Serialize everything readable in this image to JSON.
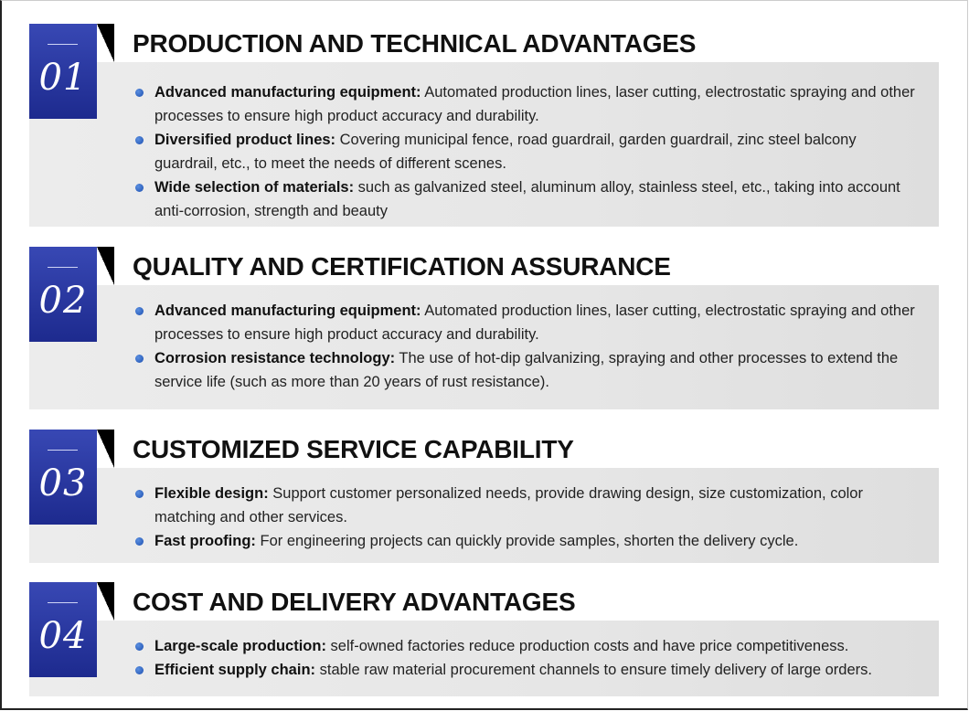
{
  "sections": [
    {
      "number": "01",
      "title": "PRODUCTION AND TECHNICAL ADVANTAGES",
      "items": [
        {
          "label": "Advanced manufacturing equipment:",
          "text": " Automated production lines, laser cutting, electrostatic spraying and other processes to ensure high product accuracy and durability."
        },
        {
          "label": "Diversified product lines:",
          "text": " Covering municipal fence, road guardrail, garden guardrail, zinc steel balcony guardrail, etc., to meet the needs of different scenes."
        },
        {
          "label": "Wide selection of materials:",
          "text": " such as galvanized steel, aluminum alloy, stainless steel, etc., taking into account anti-corrosion, strength and beauty"
        }
      ]
    },
    {
      "number": "02",
      "title": "QUALITY AND CERTIFICATION ASSURANCE",
      "items": [
        {
          "label": "Advanced manufacturing equipment:",
          "text": " Automated production lines, laser cutting, electrostatic spraying and other processes to ensure high product accuracy and durability."
        },
        {
          "label": "Corrosion resistance technology:",
          "text": " The use of hot-dip galvanizing, spraying and other processes to extend the service life (such as more than 20 years of rust resistance)."
        }
      ]
    },
    {
      "number": "03",
      "title": "CUSTOMIZED SERVICE CAPABILITY",
      "items": [
        {
          "label": "Flexible design:",
          "text": " Support customer personalized needs, provide drawing design, size customization, color matching and other services."
        },
        {
          "label": "Fast proofing:",
          "text": " For engineering projects can quickly provide samples, shorten the delivery cycle."
        }
      ]
    },
    {
      "number": "04",
      "title": "COST AND DELIVERY ADVANTAGES",
      "items": [
        {
          "label": "Large-scale production:",
          "text": " self-owned factories reduce production costs and have price competitiveness."
        },
        {
          "label": "Efficient supply chain:",
          "text": " stable raw material procurement channels to ensure timely delivery of large orders."
        }
      ]
    }
  ],
  "colors": {
    "badge": "#2a38a2",
    "bullet": "#2a5fc0",
    "panel": "#e8e8e8"
  }
}
